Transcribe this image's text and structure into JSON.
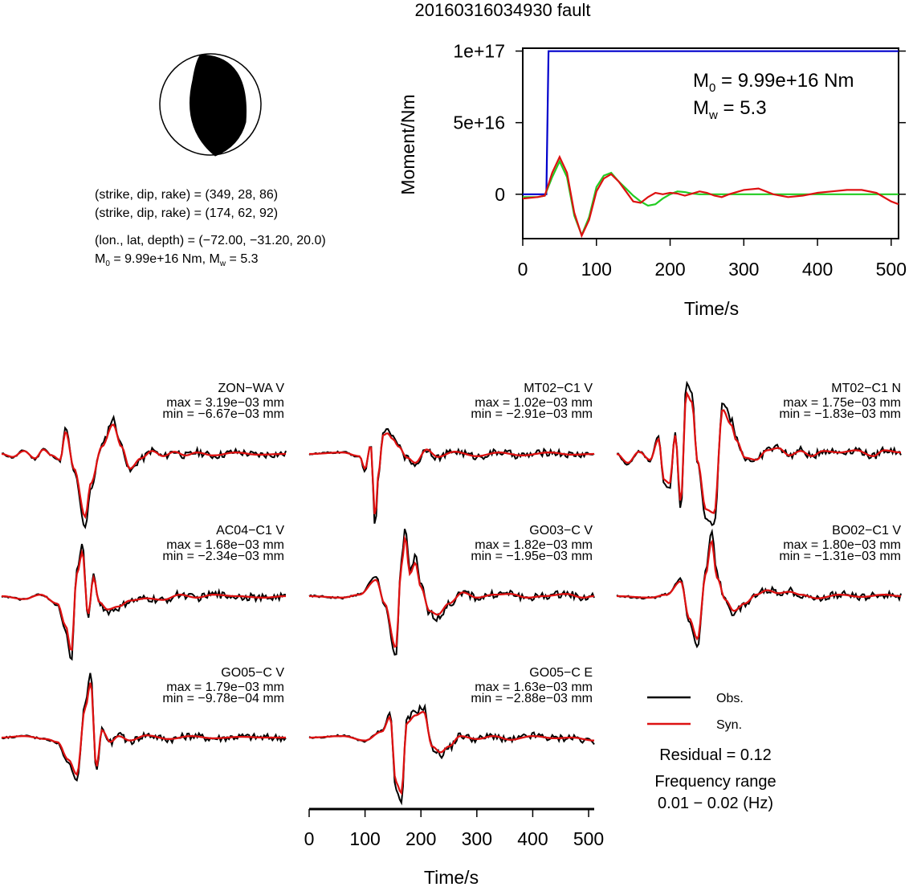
{
  "title": "20160316034930 fault",
  "beachball": {
    "planes": [
      "(strike, dip, rake) = (349, 28, 86)",
      "(strike, dip, rake) = (174, 62, 92)"
    ],
    "location": "(lon., lat, depth) = (−72.00, −31.20, 20.0)",
    "moment_line": {
      "m0_prefix": "M",
      "m0_sub": "0",
      "m0_rest": " = 9.99e+16 Nm, M",
      "mw_sub": "w",
      "mw_rest": " = 5.3"
    }
  },
  "legend": {
    "obs": "Obs.",
    "syn": "Syn.",
    "obs_color": "#000000",
    "syn_color": "#dd1111"
  },
  "residual": "Residual = 0.12",
  "freq_label": "Frequency range",
  "freq_value": "0.01 − 0.02 (Hz)",
  "chart_data": [
    {
      "type": "line",
      "ylabel": "Moment/Nm",
      "xlabel": "Time/s",
      "xlim": [
        0,
        510
      ],
      "ylim": [
        -3.1e+16,
        1.02e+17
      ],
      "x_ticks": [
        "0",
        "100",
        "200",
        "300",
        "400",
        "500"
      ],
      "y_ticks": [
        {
          "label": "1e+17",
          "value": 1e+17
        },
        {
          "label": "5e+16",
          "value": 5e+16
        },
        {
          "label": "0",
          "value": 0
        }
      ],
      "annotation": {
        "m0": "M",
        "m0_sub": "0",
        "m0_rest": " = 9.99e+16 Nm",
        "mw": "M",
        "mw_sub": "w",
        "mw_rest": " = 5.3"
      },
      "series": [
        {
          "color": "#0000cc",
          "x": [
            0,
            32,
            35,
            510
          ],
          "y": [
            0,
            0,
            9.99e+16,
            9.99e+16
          ]
        },
        {
          "color": "#22cc22",
          "x": [
            0,
            20,
            30,
            40,
            50,
            60,
            70,
            80,
            90,
            100,
            110,
            120,
            130,
            140,
            150,
            160,
            170,
            180,
            190,
            200,
            210,
            220,
            230,
            240,
            250,
            260,
            270,
            280,
            300,
            320,
            340,
            360,
            380,
            400,
            430,
            460,
            490,
            510
          ],
          "y": [
            -2000000000000000.0,
            -2000000000000000.0,
            -1000000000000000.0,
            1.2e+16,
            2.3e+16,
            1.2e+16,
            -1.5e+16,
            -2.85e+16,
            -1.6e+16,
            5000000000000000.0,
            1.3e+16,
            1.5e+16,
            9000000000000000.0,
            4000000000000000.0,
            -1000000000000000.0,
            -5000000000000000.0,
            -8000000000000000.0,
            -7000000000000000.0,
            -3000000000000000.0,
            0,
            2000000000000000.0,
            1500000000000000.0,
            500000000000000.0,
            0,
            0,
            0,
            0,
            0,
            0,
            0,
            0,
            0,
            0,
            0,
            0,
            0,
            0,
            0
          ]
        },
        {
          "color": "#dd1111",
          "x": [
            0,
            20,
            30,
            40,
            50,
            60,
            70,
            80,
            90,
            100,
            110,
            120,
            130,
            140,
            150,
            160,
            170,
            180,
            190,
            200,
            210,
            220,
            230,
            240,
            250,
            260,
            270,
            280,
            300,
            320,
            340,
            360,
            380,
            400,
            420,
            440,
            460,
            480,
            500,
            510
          ],
          "y": [
            -3000000000000000.0,
            -2000000000000000.0,
            -1000000000000000.0,
            1.5e+16,
            2.6e+16,
            1.5e+16,
            -1.3e+16,
            -2.9e+16,
            -1.8e+16,
            2000000000000000.0,
            1.1e+16,
            1.4e+16,
            9000000000000000.0,
            2000000000000000.0,
            -5000000000000000.0,
            -6000000000000000.0,
            -2000000000000000.0,
            1000000000000000.0,
            0,
            1000000000000000.0,
            500000000000000.0,
            -1000000000000000.0,
            500000000000000.0,
            2000000000000000.0,
            1000000000000000.0,
            -1000000000000000.0,
            -2000000000000000.0,
            0,
            3000000000000000.0,
            4000000000000000.0,
            0,
            -2000000000000000.0,
            -1000000000000000.0,
            1000000000000000.0,
            2000000000000000.0,
            3000000000000000.0,
            3000000000000000.0,
            1000000000000000.0,
            -5000000000000000.0,
            -7000000000000000.0
          ]
        }
      ]
    },
    {
      "type": "line",
      "xlabel": "Time/s",
      "xlim": [
        0,
        510
      ],
      "x_ticks": [
        "0",
        "100",
        "200",
        "300",
        "400",
        "500"
      ],
      "stations": [
        {
          "name": "ZON−WA V",
          "max": "max = 3.19e−03 mm",
          "min": "min = −6.67e−03 mm"
        },
        {
          "name": "MT02−C1 V",
          "max": "max = 1.02e−03 mm",
          "min": "min = −2.91e−03 mm"
        },
        {
          "name": "MT02−C1 N",
          "max": "max = 1.75e−03 mm",
          "min": "min = −1.83e−03 mm"
        },
        {
          "name": "AC04−C1 V",
          "max": "max = 1.68e−03 mm",
          "min": "min = −2.34e−03 mm"
        },
        {
          "name": "GO03−C V",
          "max": "max = 1.82e−03 mm",
          "min": "min = −1.95e−03 mm"
        },
        {
          "name": "BO02−C1 V",
          "max": "max = 1.80e−03 mm",
          "min": "min = −1.31e−03 mm"
        },
        {
          "name": "GO05−C V",
          "max": "max = 1.79e−03 mm",
          "min": "min = −9.78e−04 mm"
        },
        {
          "name": "GO05−C E",
          "max": "max = 1.63e−03 mm",
          "min": "min = −2.88e−03 mm"
        }
      ]
    }
  ]
}
